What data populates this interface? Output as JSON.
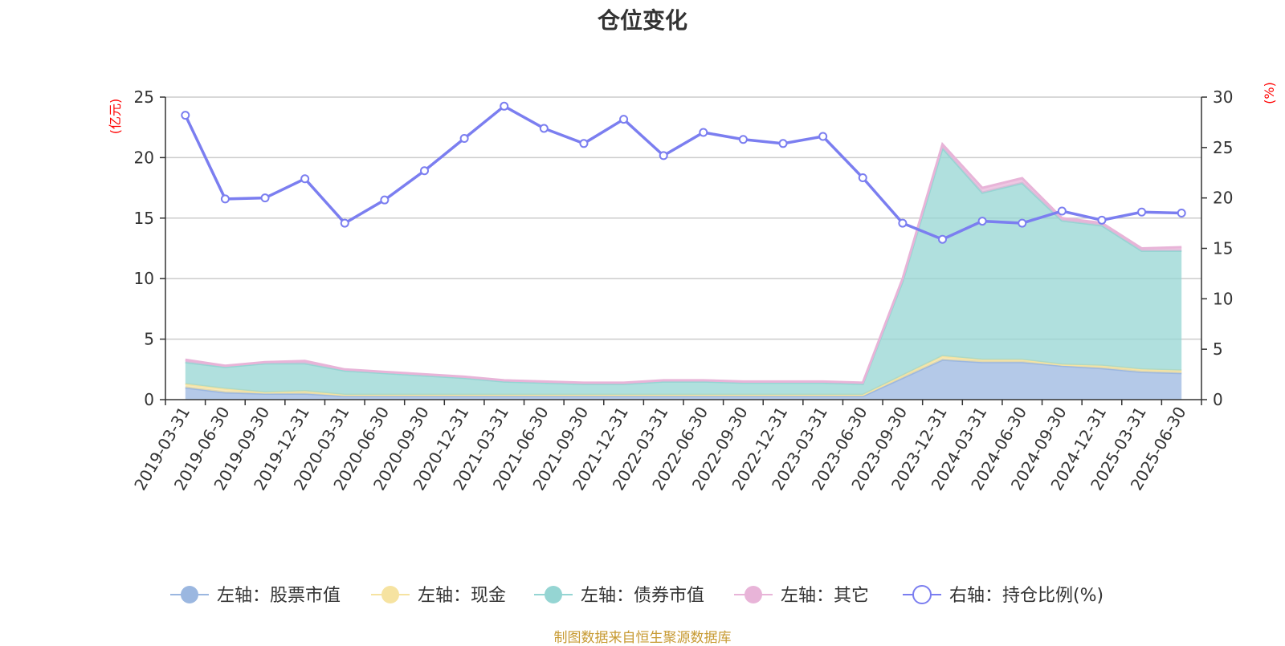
{
  "chart_data": {
    "type": "area",
    "title": "仓位变化",
    "x": [
      "2019-03-31",
      "2019-06-30",
      "2019-09-30",
      "2019-12-31",
      "2020-03-31",
      "2020-06-30",
      "2020-09-30",
      "2020-12-31",
      "2021-03-31",
      "2021-06-30",
      "2021-09-30",
      "2021-12-31",
      "2022-03-31",
      "2022-06-30",
      "2022-09-30",
      "2022-12-31",
      "2023-03-31",
      "2023-06-30",
      "2023-09-30",
      "2023-12-31",
      "2024-03-31",
      "2024-06-30",
      "2024-09-30",
      "2024-12-31",
      "2025-03-31",
      "2025-06-30"
    ],
    "left_axis": {
      "unit": "(亿元)",
      "ylim": [
        0,
        25
      ],
      "ticks": [
        "0",
        "5",
        "10",
        "15",
        "20",
        "25"
      ]
    },
    "right_axis": {
      "unit": "(%)",
      "ylim": [
        0,
        30
      ],
      "ticks": [
        "0",
        "5",
        "10",
        "15",
        "20",
        "25",
        "30"
      ]
    },
    "stacked": true,
    "series": [
      {
        "name": "左轴：股票市值",
        "axis": "left",
        "type": "area",
        "color": "#9bb7e0",
        "values": [
          1.0,
          0.6,
          0.5,
          0.5,
          0.3,
          0.3,
          0.3,
          0.3,
          0.3,
          0.3,
          0.3,
          0.3,
          0.3,
          0.3,
          0.3,
          0.3,
          0.3,
          0.3,
          1.8,
          3.3,
          3.1,
          3.1,
          2.8,
          2.6,
          2.3,
          2.2
        ]
      },
      {
        "name": "左轴：现金",
        "axis": "left",
        "type": "area",
        "color": "#f6e3a1",
        "values": [
          0.3,
          0.3,
          0.1,
          0.2,
          0.1,
          0.1,
          0.1,
          0.1,
          0.1,
          0.1,
          0.1,
          0.1,
          0.1,
          0.1,
          0.1,
          0.1,
          0.1,
          0.1,
          0.2,
          0.3,
          0.2,
          0.2,
          0.1,
          0.2,
          0.2,
          0.2
        ]
      },
      {
        "name": "左轴：债券市值",
        "axis": "left",
        "type": "area",
        "color": "#95d5d3",
        "values": [
          1.8,
          1.8,
          2.4,
          2.3,
          2.0,
          1.8,
          1.6,
          1.4,
          1.1,
          1.0,
          0.9,
          0.9,
          1.1,
          1.1,
          1.0,
          1.0,
          1.0,
          0.9,
          7.8,
          17.2,
          13.8,
          14.6,
          11.9,
          11.6,
          9.8,
          9.9
        ]
      },
      {
        "name": "左轴：其它",
        "axis": "left",
        "type": "area",
        "color": "#e8b4d8",
        "values": [
          0.2,
          0.1,
          0.1,
          0.2,
          0.1,
          0.1,
          0.1,
          0.1,
          0.1,
          0.1,
          0.1,
          0.1,
          0.1,
          0.1,
          0.1,
          0.1,
          0.1,
          0.1,
          0.2,
          0.3,
          0.4,
          0.4,
          0.2,
          0.2,
          0.2,
          0.3
        ]
      },
      {
        "name": "右轴：持仓比例(%)",
        "axis": "right",
        "type": "line",
        "color": "#7b7ef0",
        "values": [
          28.2,
          19.9,
          20.0,
          21.9,
          17.5,
          19.8,
          22.7,
          25.9,
          29.1,
          26.9,
          25.4,
          27.8,
          24.2,
          26.5,
          25.8,
          25.4,
          26.1,
          22.0,
          17.5,
          15.9,
          17.7,
          17.5,
          18.7,
          17.8,
          18.6,
          18.5
        ]
      }
    ],
    "grid": true,
    "legend_position": "bottom"
  },
  "source": "制图数据来自恒生聚源数据库"
}
